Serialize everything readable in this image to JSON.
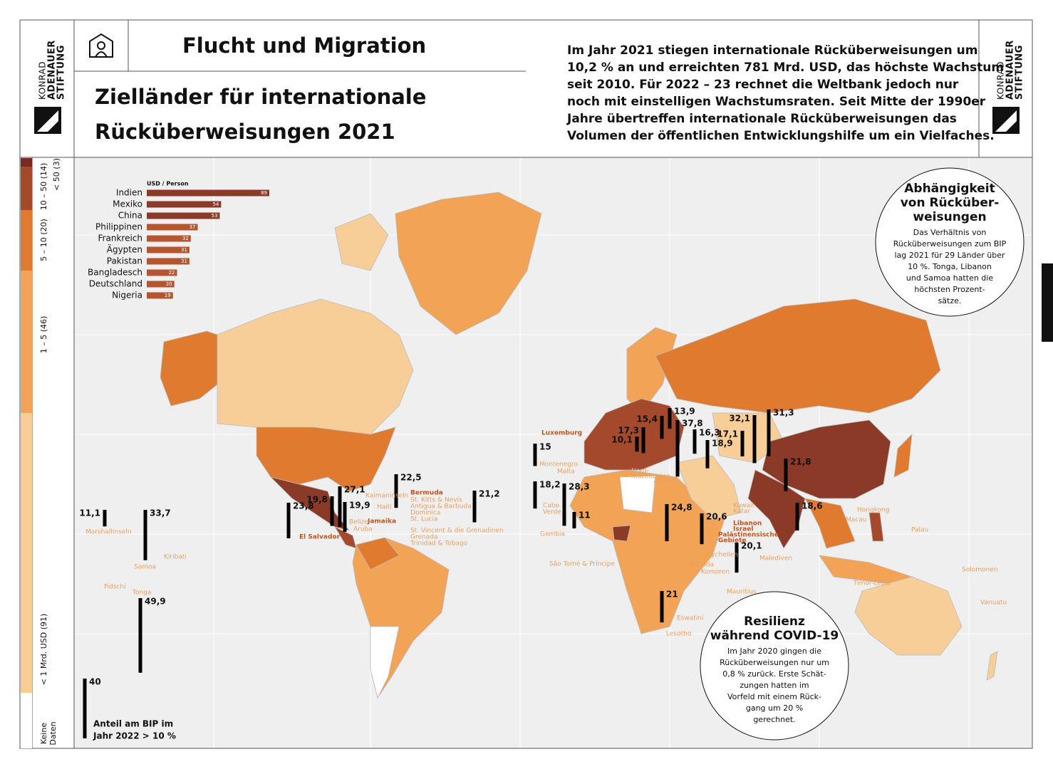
{
  "header": {
    "brand": [
      "KONRAD",
      "ADENAUER",
      "STIFTUNG"
    ],
    "section": "Flucht und Migration",
    "title": [
      "Zielländer für internationale",
      "Rücküberweisungen 2021"
    ],
    "intro": [
      "Im Jahr 2021 stiegen internationale Rücküberweisungen um",
      "10,2 % an und erreichten 781 Mrd. USD, das höchste Wachstum",
      "seit 2010. Für 2022 – 23 rechnet die Weltbank jedoch nur",
      "noch mit einstelligen Wachstumsraten. Seit Mitte der 1990er",
      "Jahre übertreffen internationale Rücküberweisungen das",
      "Volumen der öffentlichen Entwicklungshilfe um ein Vielfaches."
    ]
  },
  "legend": {
    "items": [
      {
        "label": [
          "< 50 (3)"
        ],
        "color": "#7a2a20"
      },
      {
        "label": [
          "10 – 50 (14)"
        ],
        "color": "#a5492c"
      },
      {
        "label": [
          "5 – 10 (20)"
        ],
        "color": "#e07a2e"
      },
      {
        "label": [
          "1 – 5 (46)"
        ],
        "color": "#f2a355"
      },
      {
        "label": [
          "< 1 Mrd. USD (91)"
        ],
        "color": "#f8ce98"
      },
      {
        "label": [
          "Keine",
          "Daten"
        ],
        "color": "#ffffff"
      }
    ]
  },
  "per_person": {
    "type": "bar",
    "unit": "USD / Person",
    "categories": [
      "Indien",
      "Mexiko",
      "China",
      "Philippinen",
      "Frankreich",
      "Ägypten",
      "Pakistan",
      "Bangladesch",
      "Deutschland",
      "Nigeria"
    ],
    "values": [
      89,
      54,
      53,
      37,
      32,
      31,
      31,
      22,
      20,
      19
    ],
    "colors": [
      "#8b3a28",
      "#8b3a28",
      "#8b3a28",
      "#b4552f",
      "#b4552f",
      "#b4552f",
      "#b4552f",
      "#b4552f",
      "#b4552f",
      "#b4552f"
    ]
  },
  "gdp_share": {
    "note": [
      "Anteil am BIP im",
      "Jahr 2022 > 10 %"
    ],
    "values": [
      11.1,
      33.7,
      49.9,
      40,
      23.8,
      19.8,
      27.1,
      19.9,
      22.5,
      21.2,
      15,
      18.2,
      28.3,
      11,
      10.1,
      17.3,
      15.4,
      13.9,
      37.8,
      16.3,
      18.9,
      17.1,
      32.1,
      31.3,
      21.8,
      18.6,
      24.8,
      20.6,
      20.1,
      21
    ],
    "value_labels": [
      "11,1",
      "33,7",
      "49,9",
      "40",
      "23,8",
      "19,8",
      "27,1",
      "19,9",
      "22,5",
      "21,2",
      "15",
      "18,2",
      "28,3",
      "11",
      "10,1",
      "17,3",
      "15,4",
      "13,9",
      "37,8",
      "16,3",
      "18,9",
      "17,1",
      "32,1",
      "31,3",
      "21,8",
      "18,6",
      "24,8",
      "20,6",
      "20,1",
      "21"
    ]
  },
  "map_labels": [
    "Marshallinseln",
    "Samoa",
    "Kiribati",
    "Fidschi",
    "Tonga",
    "El Salvador",
    "Kaimaninseln",
    "Haiti",
    "Bermuda",
    "St. Kitts & Nevis",
    "Antigua & Barbuda",
    "Dominica",
    "St. Lucia",
    "Belize",
    "Jamaika",
    "Aruba",
    "St. Vincent & die Grenadinen",
    "Grenada",
    "Trinidad & Tobago",
    "Luxemburg",
    "Montenegro",
    "Malta",
    "Nord-",
    "mazedonien",
    "Zypern",
    "Cabo",
    "Verde",
    "Gambia",
    "São Tomé & Príncipe",
    "Kuwait",
    "Katar",
    "Libanon",
    "Israel",
    "Palästinensische",
    "Gebiete",
    "Seychellen",
    "Ruanda",
    "Komoren",
    "Mauritius",
    "Eswatini",
    "Lesotho",
    "Malediven",
    "Hongkong",
    "Macau",
    "Palau",
    "Solomonen",
    "Timor-Leste",
    "Vanuatu"
  ],
  "callouts": [
    {
      "title": [
        "Abhängigkeit",
        "von Rücküber-",
        "weisungen"
      ],
      "text": [
        "Das Verhältnis von",
        "Rücküberweisungen zum BIP",
        "lag 2021 für 29 Länder über",
        "10 %. Tonga, Libanon",
        "und Samoa hatten die",
        "höchsten Prozent-",
        "sätze."
      ]
    },
    {
      "title": [
        "Resilienz",
        "während COVID-19"
      ],
      "text": [
        "Im Jahr 2020 gingen die",
        "Rücküberweisungen nur um",
        "0,8 % zurück. Erste Schät-",
        "zungen hatten im",
        "Vorfeld mit einem Rück-",
        "gang um 20 %",
        "gerechnet."
      ]
    }
  ]
}
